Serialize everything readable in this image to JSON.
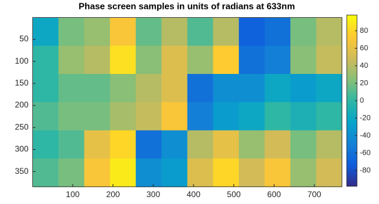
{
  "chart_data": {
    "type": "heatmap",
    "title": "Phase screen samples in units of radians at 633nm",
    "xlim": [
      0.5,
      768.5
    ],
    "xticks": [
      100,
      200,
      300,
      400,
      500,
      600,
      700
    ],
    "ylim": [
      0.5,
      384.5
    ],
    "yticks": [
      50,
      100,
      150,
      200,
      250,
      300,
      350
    ],
    "y_reversed": true,
    "colormap": "parula",
    "clim": [
      -98,
      98
    ],
    "colorbar_ticks": [
      -80,
      -60,
      -40,
      -20,
      0,
      20,
      40,
      60,
      80
    ],
    "z": [
      [
        -20,
        20,
        30,
        70,
        15,
        40,
        10,
        40,
        -70,
        -60,
        20,
        40
      ],
      [
        0,
        30,
        40,
        85,
        25,
        55,
        30,
        75,
        -60,
        -50,
        25,
        45
      ],
      [
        0,
        15,
        15,
        25,
        40,
        55,
        -60,
        -40,
        -40,
        -20,
        -30,
        -20
      ],
      [
        10,
        20,
        20,
        35,
        45,
        70,
        -50,
        -30,
        -20,
        0,
        -10,
        0
      ],
      [
        0,
        10,
        60,
        80,
        -60,
        -40,
        40,
        60,
        30,
        50,
        20,
        40
      ],
      [
        10,
        20,
        70,
        90,
        -40,
        -30,
        55,
        80,
        50,
        70,
        30,
        50
      ]
    ]
  }
}
